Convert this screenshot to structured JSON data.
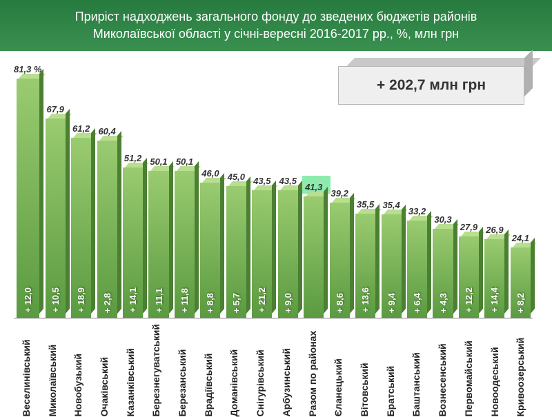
{
  "header": {
    "title_line1": "Приріст надходжень загального фонду до зведених бюджетів районів",
    "title_line2": "Миколаївської області у січні-вересні 2016-2017 рр., %, млн грн",
    "bg_gradient_from": "#267a3e",
    "bg_gradient_to": "#3a9050",
    "text_color": "#ffffff",
    "fontsize": 18
  },
  "total_box": {
    "text": "+ 202,7 млн грн",
    "front_color": "#efefef",
    "top_color": "#c9c9c9",
    "side_color": "#b0b0b0",
    "text_color": "#343434",
    "fontsize": 21
  },
  "chart": {
    "type": "bar",
    "orientation": "vertical",
    "max_value": 81.3,
    "top_label_suffix_first": " %",
    "top_label_fontsize": 13,
    "top_label_color": "#333333",
    "top_label_italic": true,
    "inside_label_fontsize": 13,
    "inside_label_color": "#ffffff",
    "x_label_fontsize": 14,
    "x_label_color": "#222222",
    "bar_gradient_from": "#9acb70",
    "bar_gradient_to": "#5a9a40",
    "bar_top_color": "#b8de90",
    "bar_side_color": "#4b7f32",
    "highlight_color": "#8debad",
    "background_color": "#ffffff",
    "bars": [
      {
        "category": "Веселинівський",
        "percent": 81.3,
        "value": "+ 12,0",
        "top_label": "81,3 %",
        "highlight": false
      },
      {
        "category": "Миколаївський",
        "percent": 67.9,
        "value": "+ 10,5",
        "top_label": "67,9",
        "highlight": false
      },
      {
        "category": "Новобузький",
        "percent": 61.2,
        "value": "+ 18,9",
        "top_label": "61,2",
        "highlight": false
      },
      {
        "category": "Очаківський",
        "percent": 60.4,
        "value": "+ 2,8",
        "top_label": "60,4",
        "highlight": false
      },
      {
        "category": "Казанківський",
        "percent": 51.2,
        "value": "+ 14,1",
        "top_label": "51,2",
        "highlight": false
      },
      {
        "category": "Березнегуватський",
        "percent": 50.1,
        "value": "+ 11,1",
        "top_label": "50,1",
        "highlight": false
      },
      {
        "category": "Березанський",
        "percent": 50.1,
        "value": "+ 11,8",
        "top_label": "50,1",
        "highlight": false
      },
      {
        "category": "Врадіївський",
        "percent": 46.0,
        "value": "+ 8,8",
        "top_label": "46,0",
        "highlight": false
      },
      {
        "category": "Доманівський",
        "percent": 45.0,
        "value": "+ 5,7",
        "top_label": "45,0",
        "highlight": false
      },
      {
        "category": "Снігурівський",
        "percent": 43.5,
        "value": "+ 21,2",
        "top_label": "43,5",
        "highlight": false
      },
      {
        "category": "Арбузинський",
        "percent": 43.5,
        "value": "+ 9,0",
        "top_label": "43,5",
        "highlight": false
      },
      {
        "category": "Разом по районах",
        "percent": 41.3,
        "value": "",
        "top_label": "41,3",
        "highlight": true
      },
      {
        "category": "Єланецький",
        "percent": 39.2,
        "value": "+ 8,6",
        "top_label": "39,2",
        "highlight": false
      },
      {
        "category": "Вітовський",
        "percent": 35.5,
        "value": "+ 13,6",
        "top_label": "35,5",
        "highlight": false
      },
      {
        "category": "Братський",
        "percent": 35.4,
        "value": "+ 9,4",
        "top_label": "35,4",
        "highlight": false
      },
      {
        "category": "Баштанський",
        "percent": 33.2,
        "value": "+ 6,4",
        "top_label": "33,2",
        "highlight": false
      },
      {
        "category": "Вознесенський",
        "percent": 30.3,
        "value": "+ 4,3",
        "top_label": "30,3",
        "highlight": false
      },
      {
        "category": "Первомайський",
        "percent": 27.9,
        "value": "+ 12,2",
        "top_label": "27,9",
        "highlight": false
      },
      {
        "category": "Новоодеський",
        "percent": 26.9,
        "value": "+ 14,4",
        "top_label": "26,9",
        "highlight": false
      },
      {
        "category": "Кривоозерський",
        "percent": 24.1,
        "value": "+ 8,2",
        "top_label": "24,1",
        "highlight": false
      }
    ]
  }
}
